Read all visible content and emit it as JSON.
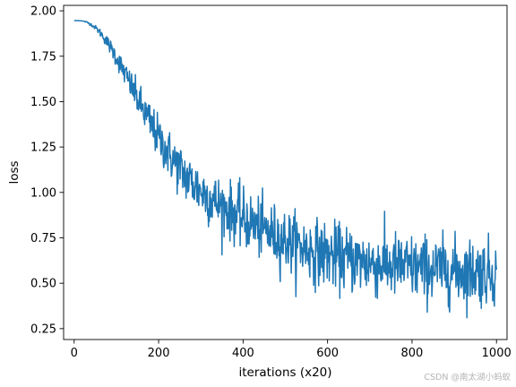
{
  "chart_data": {
    "type": "line",
    "xlabel": "iterations (x20)",
    "ylabel": "loss",
    "xlim": [
      -25,
      1025
    ],
    "ylim": [
      0.19,
      2.03
    ],
    "xticks": [
      0,
      200,
      400,
      600,
      800,
      1000
    ],
    "yticks": [
      0.25,
      0.5,
      0.75,
      1.0,
      1.25,
      1.5,
      1.75,
      2.0
    ],
    "xtick_labels": [
      "0",
      "200",
      "400",
      "600",
      "800",
      "1000"
    ],
    "ytick_labels": [
      "0.25",
      "0.50",
      "0.75",
      "1.00",
      "1.25",
      "1.50",
      "1.75",
      "2.00"
    ],
    "grid": false,
    "legend": "none",
    "series": [
      {
        "color": "#1f77b4",
        "sampled_every": 10,
        "x": [
          0,
          10,
          20,
          30,
          40,
          50,
          60,
          70,
          80,
          90,
          100,
          110,
          120,
          130,
          140,
          150,
          160,
          170,
          180,
          190,
          200,
          210,
          220,
          230,
          240,
          250,
          260,
          270,
          280,
          290,
          300,
          310,
          320,
          330,
          340,
          350,
          360,
          370,
          380,
          390,
          400,
          410,
          420,
          430,
          440,
          450,
          460,
          470,
          480,
          490,
          500,
          510,
          520,
          530,
          540,
          550,
          560,
          570,
          580,
          590,
          600,
          610,
          620,
          630,
          640,
          650,
          660,
          670,
          680,
          690,
          700,
          710,
          720,
          730,
          740,
          750,
          760,
          770,
          780,
          790,
          800,
          810,
          820,
          830,
          840,
          850,
          860,
          870,
          880,
          890,
          900,
          910,
          920,
          930,
          940,
          950,
          960,
          970,
          980,
          990,
          1000
        ],
        "y": [
          1.946,
          1.946,
          1.944,
          1.938,
          1.925,
          1.908,
          1.885,
          1.856,
          1.822,
          1.785,
          1.744,
          1.7,
          1.655,
          1.609,
          1.562,
          1.516,
          1.47,
          1.425,
          1.382,
          1.34,
          1.3,
          1.262,
          1.226,
          1.192,
          1.16,
          1.13,
          1.102,
          1.076,
          1.052,
          1.03,
          1.009,
          0.99,
          0.972,
          0.955,
          0.939,
          0.924,
          0.91,
          0.896,
          0.882,
          0.868,
          0.855,
          0.842,
          0.829,
          0.817,
          0.805,
          0.793,
          0.781,
          0.769,
          0.758,
          0.747,
          0.737,
          0.727,
          0.717,
          0.708,
          0.699,
          0.691,
          0.683,
          0.676,
          0.669,
          0.663,
          0.657,
          0.651,
          0.646,
          0.641,
          0.636,
          0.631,
          0.627,
          0.623,
          0.619,
          0.615,
          0.611,
          0.608,
          0.605,
          0.602,
          0.6,
          0.597,
          0.595,
          0.592,
          0.59,
          0.588,
          0.586,
          0.584,
          0.582,
          0.58,
          0.578,
          0.576,
          0.575,
          0.573,
          0.572,
          0.57,
          0.569,
          0.568,
          0.567,
          0.566,
          0.565,
          0.564,
          0.563,
          0.562,
          0.561,
          0.56,
          0.56
        ],
        "noise_std": [
          0.0,
          0.0,
          0.0,
          0.002,
          0.004,
          0.006,
          0.01,
          0.014,
          0.018,
          0.022,
          0.026,
          0.03,
          0.034,
          0.038,
          0.042,
          0.046,
          0.05,
          0.053,
          0.056,
          0.058,
          0.06,
          0.062,
          0.064,
          0.066,
          0.068,
          0.07,
          0.071,
          0.072,
          0.073,
          0.074,
          0.075,
          0.075,
          0.076,
          0.076,
          0.077,
          0.077,
          0.078,
          0.078,
          0.079,
          0.079,
          0.08,
          0.08,
          0.08,
          0.081,
          0.081,
          0.082,
          0.082,
          0.082,
          0.083,
          0.083,
          0.084,
          0.084,
          0.084,
          0.085,
          0.085,
          0.086,
          0.086,
          0.086,
          0.087,
          0.087,
          0.088,
          0.088,
          0.088,
          0.088,
          0.089,
          0.089,
          0.089,
          0.089,
          0.09,
          0.09,
          0.09,
          0.09,
          0.09,
          0.09,
          0.09,
          0.09,
          0.09,
          0.09,
          0.09,
          0.09,
          0.09,
          0.09,
          0.09,
          0.09,
          0.09,
          0.09,
          0.09,
          0.09,
          0.09,
          0.09,
          0.09,
          0.09,
          0.09,
          0.09,
          0.09,
          0.09,
          0.09,
          0.09,
          0.09,
          0.09,
          0.09
        ]
      }
    ]
  },
  "watermark": "CSDN @南太湖小蚂蚁"
}
